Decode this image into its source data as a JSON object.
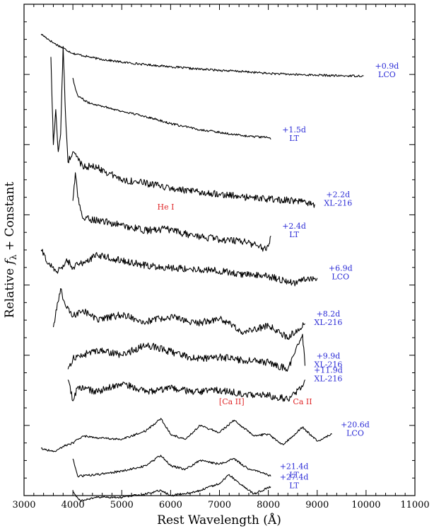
{
  "colors": {
    "epoch_label": "#2b2bd6",
    "feature_label": "#e0282a",
    "spectrum": "#000000"
  },
  "chart_data": {
    "type": "line",
    "xlabel": "Rest Wavelength (Å)",
    "ylabel_prefix": "Relative ",
    "ylabel_symbol": "f",
    "ylabel_subscript": "λ",
    "ylabel_suffix": " + Constant",
    "xlim": [
      3000,
      11000
    ],
    "xticks": [
      "3000",
      "4000",
      "5000",
      "6000",
      "7000",
      "8000",
      "9000",
      "10000",
      "11000"
    ],
    "ylim": [
      0,
      14
    ],
    "y_tick_labels_shown": false,
    "grid": false,
    "series": [
      {
        "epoch": "+0.9d",
        "telescope": "LCO",
        "points": [
          [
            3350,
            13.15
          ],
          [
            3600,
            12.9
          ],
          [
            4000,
            12.6
          ],
          [
            4500,
            12.45
          ],
          [
            5000,
            12.35
          ],
          [
            5500,
            12.28
          ],
          [
            6000,
            12.22
          ],
          [
            6500,
            12.16
          ],
          [
            7000,
            12.12
          ],
          [
            7500,
            12.08
          ],
          [
            8000,
            12.03
          ],
          [
            8500,
            12.0
          ],
          [
            9000,
            11.98
          ],
          [
            9500,
            11.96
          ],
          [
            9950,
            11.96
          ]
        ]
      },
      {
        "epoch": "+1.5d",
        "telescope": "LT",
        "points": [
          [
            4000,
            11.9
          ],
          [
            4050,
            11.6
          ],
          [
            4100,
            11.4
          ],
          [
            4300,
            11.2
          ],
          [
            4600,
            11.1
          ],
          [
            5000,
            10.95
          ],
          [
            5500,
            10.8
          ],
          [
            6000,
            10.6
          ],
          [
            6500,
            10.45
          ],
          [
            7000,
            10.35
          ],
          [
            7500,
            10.25
          ],
          [
            8000,
            10.2
          ],
          [
            8050,
            10.15
          ]
        ]
      },
      {
        "epoch": "+2.2d",
        "telescope": "XL-216",
        "points": [
          [
            3550,
            12.5
          ],
          [
            3600,
            10.0
          ],
          [
            3650,
            11.0
          ],
          [
            3700,
            9.8
          ],
          [
            3750,
            10.3
          ],
          [
            3800,
            12.8
          ],
          [
            3850,
            10.8
          ],
          [
            3900,
            9.5
          ],
          [
            4000,
            9.8
          ],
          [
            4200,
            9.4
          ],
          [
            4500,
            9.35
          ],
          [
            5000,
            9.0
          ],
          [
            5500,
            8.9
          ],
          [
            6000,
            8.75
          ],
          [
            6500,
            8.65
          ],
          [
            7000,
            8.6
          ],
          [
            7500,
            8.5
          ],
          [
            8000,
            8.45
          ],
          [
            8500,
            8.4
          ],
          [
            8950,
            8.3
          ]
        ]
      },
      {
        "epoch": "+2.4d",
        "telescope": "LT",
        "points": [
          [
            4000,
            8.4
          ],
          [
            4050,
            9.2
          ],
          [
            4100,
            8.5
          ],
          [
            4200,
            7.9
          ],
          [
            4500,
            7.85
          ],
          [
            5000,
            7.7
          ],
          [
            5500,
            7.55
          ],
          [
            5900,
            7.6
          ],
          [
            6000,
            7.55
          ],
          [
            6500,
            7.4
          ],
          [
            7000,
            7.3
          ],
          [
            7500,
            7.25
          ],
          [
            7900,
            7.05
          ],
          [
            8000,
            7.1
          ],
          [
            8050,
            7.4
          ]
        ]
      },
      {
        "epoch": "+6.9d",
        "telescope": "LCO",
        "points": [
          [
            3350,
            7.0
          ],
          [
            3500,
            6.6
          ],
          [
            3700,
            6.4
          ],
          [
            3900,
            6.7
          ],
          [
            4000,
            6.5
          ],
          [
            4500,
            6.85
          ],
          [
            5000,
            6.7
          ],
          [
            5500,
            6.55
          ],
          [
            6000,
            6.5
          ],
          [
            6500,
            6.45
          ],
          [
            7000,
            6.4
          ],
          [
            7500,
            6.3
          ],
          [
            8000,
            6.25
          ],
          [
            8500,
            6.05
          ],
          [
            8800,
            6.2
          ],
          [
            9000,
            6.2
          ]
        ]
      },
      {
        "epoch": "+8.2d",
        "telescope": "XL-216",
        "points": [
          [
            3600,
            4.8
          ],
          [
            3750,
            5.9
          ],
          [
            3850,
            5.4
          ],
          [
            4000,
            5.1
          ],
          [
            4200,
            5.3
          ],
          [
            4500,
            5.0
          ],
          [
            5000,
            5.15
          ],
          [
            5500,
            4.95
          ],
          [
            6000,
            5.1
          ],
          [
            6500,
            4.9
          ],
          [
            7000,
            5.05
          ],
          [
            7500,
            4.65
          ],
          [
            8000,
            4.85
          ],
          [
            8400,
            4.5
          ],
          [
            8750,
            4.9
          ]
        ]
      },
      {
        "epoch": "+9.9d",
        "telescope": "XL-216",
        "points": [
          [
            3900,
            3.6
          ],
          [
            4000,
            3.9
          ],
          [
            4500,
            4.15
          ],
          [
            5000,
            4.0
          ],
          [
            5500,
            4.3
          ],
          [
            6000,
            4.1
          ],
          [
            6500,
            3.9
          ],
          [
            7000,
            3.95
          ],
          [
            7500,
            3.85
          ],
          [
            8000,
            3.8
          ],
          [
            8400,
            3.6
          ],
          [
            8700,
            4.6
          ],
          [
            8750,
            3.7
          ]
        ]
      },
      {
        "epoch": "+11.9d",
        "telescope": "XL-216",
        "points": [
          [
            3900,
            3.3
          ],
          [
            4000,
            2.7
          ],
          [
            4100,
            3.1
          ],
          [
            4500,
            2.95
          ],
          [
            5000,
            3.2
          ],
          [
            5500,
            2.95
          ],
          [
            6000,
            3.05
          ],
          [
            6500,
            2.95
          ],
          [
            7000,
            3.0
          ],
          [
            7500,
            2.9
          ],
          [
            8000,
            2.85
          ],
          [
            8400,
            2.75
          ],
          [
            8700,
            3.1
          ],
          [
            8750,
            3.3
          ]
        ]
      },
      {
        "epoch": "+20.6d",
        "telescope": "LCO",
        "points": [
          [
            3350,
            1.35
          ],
          [
            3600,
            1.25
          ],
          [
            3800,
            1.4
          ],
          [
            4000,
            1.5
          ],
          [
            4200,
            1.7
          ],
          [
            4500,
            1.65
          ],
          [
            5000,
            1.6
          ],
          [
            5500,
            1.85
          ],
          [
            5800,
            2.2
          ],
          [
            6000,
            1.75
          ],
          [
            6300,
            1.6
          ],
          [
            6600,
            2.0
          ],
          [
            7000,
            1.8
          ],
          [
            7300,
            2.15
          ],
          [
            7700,
            1.7
          ],
          [
            8000,
            1.75
          ],
          [
            8300,
            1.45
          ],
          [
            8700,
            1.95
          ],
          [
            9000,
            1.55
          ],
          [
            9300,
            1.75
          ]
        ]
      },
      {
        "epoch": "+21.4d",
        "telescope": "LT",
        "points": [
          [
            4000,
            1.05
          ],
          [
            4100,
            0.55
          ],
          [
            4500,
            0.6
          ],
          [
            5000,
            0.7
          ],
          [
            5500,
            0.85
          ],
          [
            5800,
            1.15
          ],
          [
            6000,
            0.85
          ],
          [
            6300,
            0.75
          ],
          [
            6600,
            1.0
          ],
          [
            7000,
            0.9
          ],
          [
            7300,
            1.05
          ],
          [
            7600,
            0.75
          ],
          [
            7800,
            0.7
          ],
          [
            8050,
            0.55
          ]
        ]
      },
      {
        "epoch": "+27.4d",
        "telescope": "LT",
        "points": [
          [
            4000,
            0.1
          ],
          [
            4150,
            -0.15
          ],
          [
            4500,
            -0.05
          ],
          [
            5000,
            -0.05
          ],
          [
            5500,
            0.05
          ],
          [
            5800,
            0.15
          ],
          [
            6000,
            0.0
          ],
          [
            6500,
            0.1
          ],
          [
            7000,
            0.35
          ],
          [
            7200,
            0.6
          ],
          [
            7400,
            0.35
          ],
          [
            7700,
            0.05
          ],
          [
            8050,
            0.25
          ]
        ]
      }
    ],
    "annotations": [
      {
        "text": "He I",
        "x": 5900,
        "y": 8.15
      },
      {
        "text": "[Ca II]",
        "x": 7250,
        "y": 2.6
      },
      {
        "text": "Ca II",
        "x": 8700,
        "y": 2.6
      }
    ]
  }
}
